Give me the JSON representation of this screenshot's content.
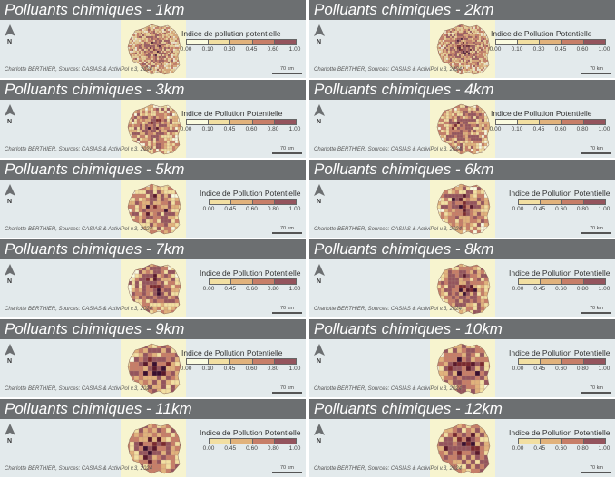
{
  "credit": "Charlotte BERTHIER, Sources: CASIAS & ActiviPol v.3, 2024",
  "scale_label": "70 km",
  "north_label": "N",
  "palette": [
    "#fafbe0",
    "#f2dfa2",
    "#e1b27c",
    "#c77e68",
    "#94545d"
  ],
  "panels": [
    {
      "title": "Polluants chimiques - 1km",
      "legend_title": "Indice de pollution potentielle",
      "ticks": [
        "0.00",
        "0.10",
        "0.30",
        "0.45",
        "0.60",
        "1.00"
      ]
    },
    {
      "title": "Polluants chimiques - 2km",
      "legend_title": "Indice de Pollution Potentielle",
      "ticks": [
        "0.00",
        "0.10",
        "0.30",
        "0.45",
        "0.60",
        "1.00"
      ]
    },
    {
      "title": "Polluants chimiques - 3km",
      "legend_title": "Indice de Pollution Potentielle",
      "ticks": [
        "0.00",
        "0.10",
        "0.45",
        "0.60",
        "0.80",
        "1.00"
      ]
    },
    {
      "title": "Polluants chimiques - 4km",
      "legend_title": "Indice de Pollution Potentielle",
      "ticks": [
        "0.00",
        "0.10",
        "0.45",
        "0.60",
        "0.80",
        "1.00"
      ]
    },
    {
      "title": "Polluants chimiques - 5km",
      "legend_title": "Indice de Pollution Potentielle",
      "ticks": [
        "0.00",
        "0.45",
        "0.60",
        "0.80",
        "1.00"
      ]
    },
    {
      "title": "Polluants chimiques - 6km",
      "legend_title": "Indice de Pollution Potentielle",
      "ticks": [
        "0.00",
        "0.45",
        "0.60",
        "0.80",
        "1.00"
      ]
    },
    {
      "title": "Polluants chimiques - 7km",
      "legend_title": "Indice de Pollution Potentielle",
      "ticks": [
        "0.00",
        "0.45",
        "0.60",
        "0.80",
        "1.00"
      ]
    },
    {
      "title": "Polluants chimiques - 8km",
      "legend_title": "Indice de Pollution Potentielle",
      "ticks": [
        "0.00",
        "0.45",
        "0.60",
        "0.80",
        "1.00"
      ]
    },
    {
      "title": "Polluants chimiques - 9km",
      "legend_title": "Indice de Pollution Potentielle",
      "ticks": [
        "0.00",
        "0.10",
        "0.45",
        "0.60",
        "0.80",
        "1.00"
      ]
    },
    {
      "title": "Polluants chimiques - 10km",
      "legend_title": "Indice de Pollution Potentielle",
      "ticks": [
        "0.00",
        "0.45",
        "0.60",
        "0.80",
        "1.00"
      ]
    },
    {
      "title": "Polluants chimiques - 11km",
      "legend_title": "Indice de Pollution Potentielle",
      "ticks": [
        "0.00",
        "0.45",
        "0.60",
        "0.80",
        "1.00"
      ]
    },
    {
      "title": "Polluants chimiques - 12km",
      "legend_title": "Indice de Pollution Potentielle",
      "ticks": [
        "0.00",
        "0.45",
        "0.60",
        "0.80",
        "1.00"
      ]
    }
  ]
}
